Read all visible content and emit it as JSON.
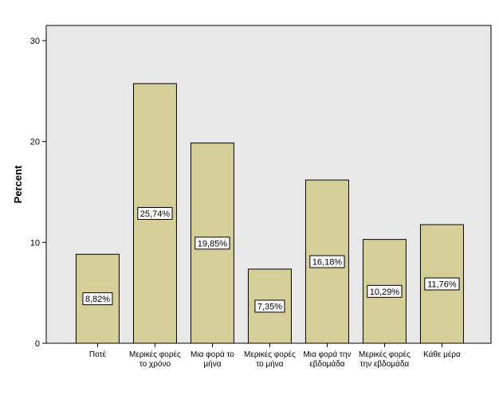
{
  "chart_data": {
    "type": "bar",
    "ylabel": "Percent",
    "ylim": [
      0,
      31.5
    ],
    "yticks": [
      "0",
      "10",
      "20",
      "30"
    ],
    "grid": false,
    "colors": {
      "plot_background": "#e8e8e8",
      "bar_fill": "#d4cf98",
      "bar_stroke": "#000000",
      "label_box": "#ffffff"
    },
    "categories": [
      [
        "Ποτέ"
      ],
      [
        "Μερικές φορές",
        "το χρόνο"
      ],
      [
        "Μια φορά το",
        "μήνα"
      ],
      [
        "Μερικές φορές",
        "το μήνα"
      ],
      [
        "Μια φορά την",
        "εβδομάδα"
      ],
      [
        "Μερικές φορές",
        "την εβδομάδα"
      ],
      [
        "Κάθε μέρα"
      ]
    ],
    "values": [
      8.82,
      25.74,
      19.85,
      7.35,
      16.18,
      10.29,
      11.76
    ],
    "data_labels": [
      "8,82%",
      "25,74%",
      "19,85%",
      "7,35%",
      "16,18%",
      "10,29%",
      "11,76%"
    ]
  }
}
